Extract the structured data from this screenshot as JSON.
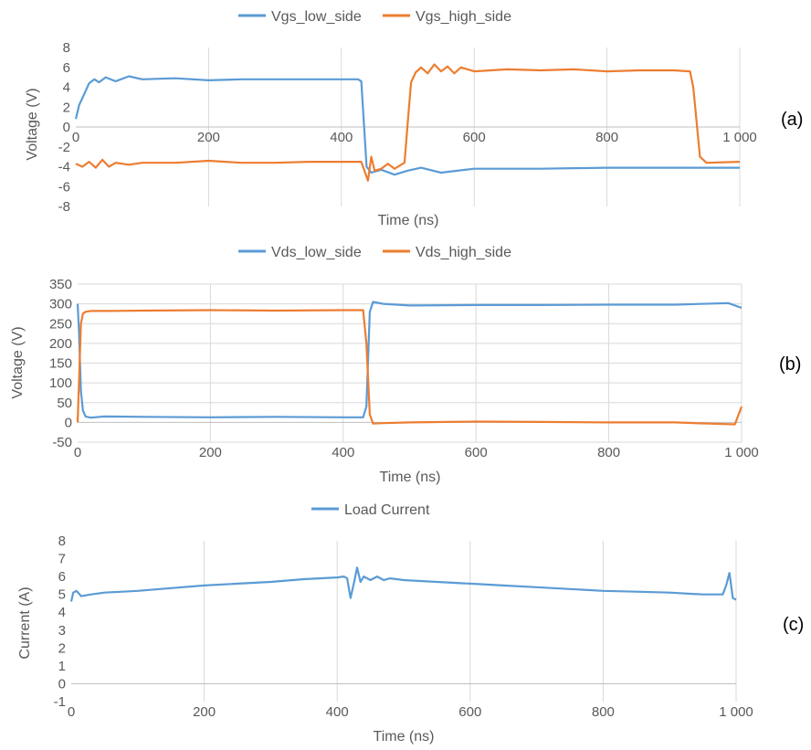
{
  "colors": {
    "low_side": "#5B9BD5",
    "high_side": "#ED7D31",
    "grid": "#D9D9D9",
    "text": "#595959"
  },
  "chart_data": [
    {
      "type": "line",
      "panel_label": "(a)",
      "xlabel": "Time (ns)",
      "ylabel": "Voltage (V)",
      "xlim": [
        0,
        1000
      ],
      "ylim": [
        -8,
        8
      ],
      "x_ticks": [
        0,
        200,
        400,
        600,
        800,
        1000
      ],
      "x_tick_labels": [
        "0",
        "200",
        "400",
        "600",
        "800",
        "1 000"
      ],
      "y_ticks": [
        -8,
        -6,
        -4,
        -2,
        0,
        2,
        4,
        6,
        8
      ],
      "y_tick_labels": [
        "-8",
        "-6",
        "-4",
        "-2",
        "0",
        "2",
        "4",
        "6",
        "8"
      ],
      "grid": "vertical",
      "legend": "top",
      "series": [
        {
          "name": "Vgs_low_side",
          "color": "#5B9BD5",
          "x": [
            0,
            5,
            12,
            20,
            28,
            35,
            45,
            60,
            80,
            100,
            150,
            200,
            250,
            300,
            350,
            400,
            425,
            430,
            438,
            445,
            460,
            480,
            500,
            520,
            550,
            600,
            700,
            800,
            900,
            1000
          ],
          "y": [
            0.8,
            2.2,
            3.2,
            4.4,
            4.8,
            4.5,
            5.0,
            4.6,
            5.1,
            4.8,
            4.9,
            4.7,
            4.8,
            4.8,
            4.8,
            4.8,
            4.8,
            4.6,
            -4.0,
            -4.6,
            -4.3,
            -4.8,
            -4.4,
            -4.1,
            -4.6,
            -4.2,
            -4.2,
            -4.1,
            -4.1,
            -4.1
          ]
        },
        {
          "name": "Vgs_high_side",
          "color": "#ED7D31",
          "x": [
            0,
            10,
            20,
            30,
            40,
            50,
            60,
            80,
            100,
            150,
            200,
            250,
            300,
            350,
            400,
            430,
            440,
            445,
            450,
            460,
            470,
            480,
            490,
            495,
            500,
            505,
            512,
            520,
            530,
            540,
            550,
            560,
            570,
            580,
            600,
            650,
            700,
            750,
            800,
            850,
            900,
            925,
            930,
            940,
            950,
            1000
          ],
          "y": [
            -3.7,
            -4.0,
            -3.5,
            -4.1,
            -3.3,
            -4.0,
            -3.6,
            -3.8,
            -3.6,
            -3.6,
            -3.4,
            -3.6,
            -3.6,
            -3.5,
            -3.5,
            -3.5,
            -5.4,
            -3.0,
            -4.4,
            -4.2,
            -3.7,
            -4.2,
            -3.8,
            -3.6,
            0.5,
            4.5,
            5.5,
            6.0,
            5.4,
            6.3,
            5.6,
            6.1,
            5.4,
            6.0,
            5.6,
            5.8,
            5.7,
            5.8,
            5.6,
            5.7,
            5.7,
            5.6,
            4.0,
            -3.0,
            -3.6,
            -3.5
          ]
        }
      ]
    },
    {
      "type": "line",
      "panel_label": "(b)",
      "xlabel": "Time (ns)",
      "ylabel": "Voltage (V)",
      "xlim": [
        0,
        1000
      ],
      "ylim": [
        -50,
        350
      ],
      "x_ticks": [
        0,
        200,
        400,
        600,
        800,
        1000
      ],
      "x_tick_labels": [
        "0",
        "200",
        "400",
        "600",
        "800",
        "1 000"
      ],
      "y_ticks": [
        -50,
        0,
        50,
        100,
        150,
        200,
        250,
        300,
        350
      ],
      "y_tick_labels": [
        "-50",
        "0",
        "50",
        "100",
        "150",
        "200",
        "250",
        "300",
        "350"
      ],
      "grid": "both",
      "legend": "top",
      "series": [
        {
          "name": "Vds_low_side",
          "color": "#5B9BD5",
          "x": [
            0,
            2,
            5,
            8,
            12,
            20,
            40,
            100,
            200,
            300,
            400,
            430,
            435,
            440,
            445,
            460,
            500,
            600,
            700,
            800,
            900,
            980,
            1000
          ],
          "y": [
            300,
            230,
            80,
            30,
            15,
            12,
            15,
            14,
            13,
            14,
            13,
            13,
            40,
            280,
            305,
            300,
            296,
            297,
            297,
            298,
            298,
            302,
            290
          ]
        },
        {
          "name": "Vds_high_side",
          "color": "#ED7D31",
          "x": [
            0,
            2,
            5,
            8,
            12,
            20,
            50,
            100,
            200,
            300,
            400,
            430,
            435,
            440,
            445,
            460,
            500,
            600,
            700,
            800,
            900,
            950,
            990,
            1000
          ],
          "y": [
            0,
            100,
            250,
            275,
            280,
            282,
            282,
            283,
            284,
            283,
            284,
            284,
            200,
            20,
            -3,
            -2,
            0,
            2,
            1,
            0,
            0,
            -3,
            -5,
            40
          ]
        }
      ]
    },
    {
      "type": "line",
      "panel_label": "(c)",
      "xlabel": "Time (ns)",
      "ylabel": "Current (A)",
      "xlim": [
        0,
        1000
      ],
      "ylim": [
        -1,
        8
      ],
      "x_ticks": [
        0,
        200,
        400,
        600,
        800,
        1000
      ],
      "x_tick_labels": [
        "0",
        "200",
        "400",
        "600",
        "800",
        "1 000"
      ],
      "y_ticks": [
        -1,
        0,
        1,
        2,
        3,
        4,
        5,
        6,
        7,
        8
      ],
      "y_tick_labels": [
        "-1",
        "0",
        "1",
        "2",
        "3",
        "4",
        "5",
        "6",
        "7",
        "8"
      ],
      "grid": "vertical",
      "legend": "top",
      "series": [
        {
          "name": "Load Current",
          "color": "#5B9BD5",
          "x": [
            0,
            3,
            8,
            15,
            30,
            50,
            100,
            150,
            200,
            250,
            300,
            350,
            400,
            410,
            415,
            420,
            425,
            430,
            435,
            440,
            450,
            460,
            470,
            480,
            500,
            550,
            600,
            650,
            700,
            750,
            800,
            850,
            900,
            950,
            980,
            985,
            990,
            995,
            1000
          ],
          "y": [
            4.6,
            5.1,
            5.2,
            4.9,
            5.0,
            5.1,
            5.2,
            5.35,
            5.5,
            5.6,
            5.7,
            5.85,
            5.95,
            6.0,
            5.9,
            4.8,
            5.6,
            6.5,
            5.7,
            6.0,
            5.8,
            6.0,
            5.8,
            5.9,
            5.8,
            5.7,
            5.6,
            5.5,
            5.4,
            5.3,
            5.2,
            5.15,
            5.1,
            5.0,
            5.0,
            5.5,
            6.2,
            4.8,
            4.7
          ]
        }
      ]
    }
  ]
}
